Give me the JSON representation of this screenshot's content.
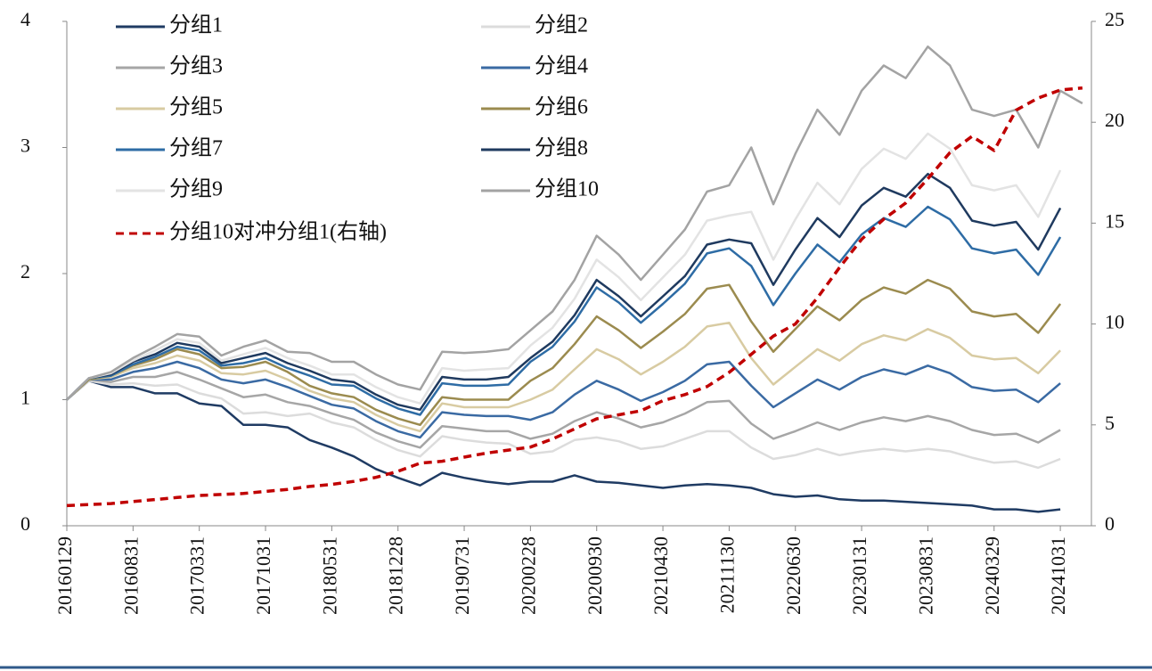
{
  "chart_data": {
    "type": "line",
    "categories": [
      "20160129",
      null,
      null,
      "20160831",
      null,
      null,
      "20170331",
      null,
      null,
      "20171031",
      null,
      null,
      "20180531",
      null,
      null,
      "20181228",
      null,
      null,
      "20190731",
      null,
      null,
      "20200228",
      null,
      null,
      "20200930",
      null,
      null,
      "20210430",
      null,
      null,
      "20211130",
      null,
      null,
      "20220630",
      null,
      null,
      "20230131",
      null,
      null,
      "20230831",
      null,
      null,
      "20240329",
      null,
      null,
      "20241031",
      null
    ],
    "ylim": [
      0,
      4
    ],
    "yticks": [
      0,
      1,
      2,
      3,
      4
    ],
    "y2lim": [
      0,
      25
    ],
    "y2ticks": [
      0,
      5,
      10,
      15,
      20,
      25
    ],
    "series": [
      {
        "name": "分组1",
        "color": "#1f3b63",
        "values": [
          1.0,
          1.15,
          1.1,
          1.1,
          1.05,
          1.05,
          0.97,
          0.95,
          0.8,
          0.8,
          0.78,
          0.68,
          0.62,
          0.55,
          0.45,
          0.38,
          0.32,
          0.42,
          0.38,
          0.35,
          0.33,
          0.35,
          0.35,
          0.4,
          0.35,
          0.34,
          0.32,
          0.3,
          0.32,
          0.33,
          0.32,
          0.3,
          0.25,
          0.23,
          0.24,
          0.21,
          0.2,
          0.2,
          0.19,
          0.18,
          0.17,
          0.16,
          0.13,
          0.13,
          0.11,
          0.13,
          null
        ]
      },
      {
        "name": "分组2",
        "color": "#dcdcdc",
        "values": [
          1.0,
          1.15,
          1.12,
          1.13,
          1.11,
          1.12,
          1.05,
          1.01,
          0.89,
          0.9,
          0.87,
          0.89,
          0.82,
          0.78,
          0.68,
          0.6,
          0.55,
          0.71,
          0.68,
          0.66,
          0.65,
          0.57,
          0.59,
          0.68,
          0.7,
          0.67,
          0.61,
          0.63,
          0.69,
          0.75,
          0.75,
          0.62,
          0.53,
          0.56,
          0.61,
          0.56,
          0.59,
          0.61,
          0.59,
          0.61,
          0.59,
          0.54,
          0.5,
          0.51,
          0.46,
          0.53,
          null
        ]
      },
      {
        "name": "分组3",
        "color": "#a6a6a6",
        "values": [
          1.0,
          1.16,
          1.14,
          1.18,
          1.18,
          1.22,
          1.16,
          1.09,
          1.02,
          1.04,
          0.98,
          0.95,
          0.89,
          0.84,
          0.74,
          0.67,
          0.62,
          0.79,
          0.77,
          0.75,
          0.75,
          0.69,
          0.73,
          0.83,
          0.9,
          0.85,
          0.78,
          0.82,
          0.89,
          0.98,
          0.99,
          0.81,
          0.69,
          0.75,
          0.82,
          0.76,
          0.82,
          0.86,
          0.83,
          0.87,
          0.83,
          0.76,
          0.72,
          0.73,
          0.66,
          0.76,
          null
        ]
      },
      {
        "name": "分组4",
        "color": "#3a6aa3",
        "values": [
          1.0,
          1.16,
          1.16,
          1.22,
          1.25,
          1.3,
          1.25,
          1.16,
          1.13,
          1.16,
          1.1,
          1.03,
          0.96,
          0.93,
          0.83,
          0.75,
          0.7,
          0.9,
          0.88,
          0.87,
          0.87,
          0.84,
          0.9,
          1.04,
          1.15,
          1.08,
          0.99,
          1.06,
          1.15,
          1.28,
          1.3,
          1.11,
          0.94,
          1.05,
          1.16,
          1.08,
          1.18,
          1.24,
          1.2,
          1.27,
          1.21,
          1.1,
          1.07,
          1.08,
          0.98,
          1.13,
          null
        ]
      },
      {
        "name": "分组5",
        "color": "#d8cba2",
        "values": [
          1.0,
          1.16,
          1.18,
          1.25,
          1.29,
          1.35,
          1.31,
          1.21,
          1.2,
          1.23,
          1.16,
          1.07,
          1.01,
          0.98,
          0.88,
          0.8,
          0.75,
          0.97,
          0.94,
          0.94,
          0.94,
          1.0,
          1.08,
          1.24,
          1.4,
          1.32,
          1.2,
          1.3,
          1.42,
          1.58,
          1.61,
          1.33,
          1.12,
          1.26,
          1.4,
          1.31,
          1.44,
          1.51,
          1.47,
          1.56,
          1.49,
          1.35,
          1.32,
          1.33,
          1.21,
          1.39,
          null
        ]
      },
      {
        "name": "分组6",
        "color": "#9b8b4f",
        "values": [
          1.0,
          1.16,
          1.19,
          1.27,
          1.32,
          1.4,
          1.36,
          1.25,
          1.26,
          1.3,
          1.22,
          1.11,
          1.05,
          1.02,
          0.92,
          0.85,
          0.8,
          1.02,
          1.0,
          1.0,
          1.0,
          1.15,
          1.25,
          1.44,
          1.66,
          1.55,
          1.41,
          1.54,
          1.68,
          1.88,
          1.91,
          1.62,
          1.38,
          1.56,
          1.74,
          1.63,
          1.79,
          1.89,
          1.84,
          1.95,
          1.88,
          1.7,
          1.66,
          1.68,
          1.53,
          1.76,
          null
        ]
      },
      {
        "name": "分组7",
        "color": "#2e6ca5",
        "values": [
          1.0,
          1.17,
          1.19,
          1.28,
          1.34,
          1.42,
          1.39,
          1.27,
          1.29,
          1.33,
          1.25,
          1.19,
          1.12,
          1.11,
          1.01,
          0.93,
          0.88,
          1.13,
          1.11,
          1.11,
          1.12,
          1.3,
          1.42,
          1.62,
          1.89,
          1.77,
          1.61,
          1.76,
          1.92,
          2.16,
          2.2,
          2.06,
          1.75,
          2.0,
          2.23,
          2.09,
          2.31,
          2.44,
          2.37,
          2.53,
          2.43,
          2.2,
          2.16,
          2.19,
          1.99,
          2.29,
          null
        ]
      },
      {
        "name": "分组8",
        "color": "#1f3a5f",
        "values": [
          1.0,
          1.17,
          1.2,
          1.3,
          1.36,
          1.45,
          1.42,
          1.29,
          1.33,
          1.37,
          1.29,
          1.23,
          1.16,
          1.14,
          1.04,
          0.96,
          0.92,
          1.18,
          1.16,
          1.16,
          1.18,
          1.33,
          1.46,
          1.67,
          1.95,
          1.82,
          1.66,
          1.82,
          1.98,
          2.23,
          2.27,
          2.24,
          1.91,
          2.19,
          2.44,
          2.29,
          2.54,
          2.68,
          2.61,
          2.79,
          2.68,
          2.42,
          2.38,
          2.41,
          2.19,
          2.52,
          null
        ]
      },
      {
        "name": "分组9",
        "color": "#e3e3e3",
        "values": [
          1.0,
          1.17,
          1.21,
          1.31,
          1.39,
          1.48,
          1.45,
          1.31,
          1.36,
          1.41,
          1.33,
          1.27,
          1.2,
          1.2,
          1.1,
          1.02,
          0.97,
          1.25,
          1.23,
          1.24,
          1.25,
          1.43,
          1.57,
          1.8,
          2.11,
          1.97,
          1.79,
          1.97,
          2.15,
          2.42,
          2.46,
          2.49,
          2.11,
          2.43,
          2.72,
          2.55,
          2.83,
          2.99,
          2.91,
          3.11,
          2.99,
          2.7,
          2.66,
          2.7,
          2.45,
          2.82,
          null
        ]
      },
      {
        "name": "分组10",
        "color": "#a3a3a3",
        "values": [
          1.0,
          1.17,
          1.22,
          1.33,
          1.42,
          1.52,
          1.5,
          1.35,
          1.42,
          1.47,
          1.38,
          1.37,
          1.3,
          1.3,
          1.2,
          1.12,
          1.08,
          1.38,
          1.37,
          1.38,
          1.4,
          1.55,
          1.7,
          1.95,
          2.3,
          2.15,
          1.95,
          2.15,
          2.35,
          2.65,
          2.7,
          3.0,
          2.55,
          2.95,
          3.3,
          3.1,
          3.45,
          3.65,
          3.55,
          3.8,
          3.65,
          3.3,
          3.25,
          3.3,
          3.0,
          3.45,
          3.35
        ]
      },
      {
        "name": "分组10对冲分组1(右轴)",
        "color": "#c00000",
        "axis": "y2",
        "linestyle": "dashed",
        "values": [
          1.0,
          1.05,
          1.1,
          1.2,
          1.3,
          1.4,
          1.5,
          1.55,
          1.6,
          1.7,
          1.8,
          1.95,
          2.05,
          2.2,
          2.4,
          2.7,
          3.1,
          3.2,
          3.4,
          3.6,
          3.75,
          3.9,
          4.3,
          4.8,
          5.3,
          5.5,
          5.7,
          6.2,
          6.5,
          6.9,
          7.6,
          8.5,
          9.4,
          10.0,
          11.3,
          12.8,
          14.2,
          15.2,
          16.0,
          17.2,
          18.5,
          19.3,
          18.6,
          20.6,
          21.2,
          21.6,
          21.7
        ]
      }
    ]
  }
}
